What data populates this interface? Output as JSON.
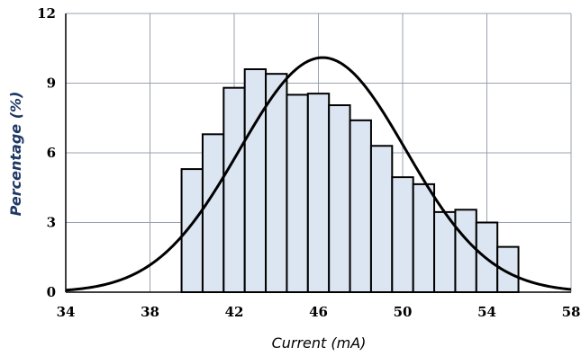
{
  "chart_data": {
    "type": "bar",
    "title": "",
    "xlabel": "Current (mA)",
    "ylabel": "Percentage (%)",
    "xlim": [
      34,
      58
    ],
    "ylim": [
      0,
      12
    ],
    "xticks": [
      34,
      38,
      42,
      46,
      50,
      54,
      58
    ],
    "yticks": [
      0,
      3,
      6,
      9,
      12
    ],
    "grid": true,
    "bin_width": 1,
    "bins": [
      {
        "start": 39.5,
        "value": 5.3
      },
      {
        "start": 40.5,
        "value": 6.8
      },
      {
        "start": 41.5,
        "value": 8.8
      },
      {
        "start": 42.5,
        "value": 9.6
      },
      {
        "start": 43.5,
        "value": 9.4
      },
      {
        "start": 44.5,
        "value": 8.5
      },
      {
        "start": 45.5,
        "value": 8.55
      },
      {
        "start": 46.5,
        "value": 8.05
      },
      {
        "start": 47.5,
        "value": 7.4
      },
      {
        "start": 48.5,
        "value": 6.3
      },
      {
        "start": 49.5,
        "value": 4.95
      },
      {
        "start": 50.5,
        "value": 4.65
      },
      {
        "start": 51.5,
        "value": 3.45
      },
      {
        "start": 52.5,
        "value": 3.55
      },
      {
        "start": 53.5,
        "value": 3.0
      },
      {
        "start": 54.5,
        "value": 1.95
      }
    ],
    "fit_curve": {
      "type": "normal",
      "mean": 46.2,
      "sd": 3.95,
      "peak": 10.1
    }
  }
}
